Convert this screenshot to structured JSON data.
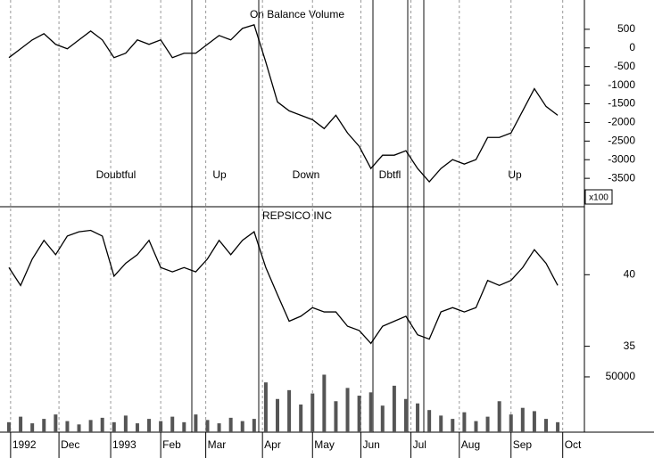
{
  "chart_data": [
    {
      "type": "line",
      "title": "On Balance Volume",
      "unit_note": "x100",
      "annotations": [
        "Doubtful",
        "Up",
        "Down",
        "Dbtfl",
        "Up"
      ],
      "x": [
        0,
        7,
        14,
        21,
        28,
        35,
        42,
        49,
        56,
        63,
        70,
        77,
        84,
        91,
        98,
        105,
        112,
        119,
        126,
        133,
        140,
        147,
        154,
        161,
        168,
        175,
        182,
        189,
        196,
        203,
        210,
        217,
        224,
        231,
        238,
        245,
        252,
        259,
        266,
        273,
        280,
        287,
        294,
        301,
        308,
        315,
        322,
        329
      ],
      "values": [
        -261,
        -23,
        215,
        382,
        96,
        -23,
        215,
        453,
        215,
        -261,
        -142,
        215,
        96,
        215,
        -261,
        -142,
        -142,
        96,
        334,
        215,
        524,
        620,
        -380,
        -1451,
        -1689,
        -1808,
        -1927,
        -2165,
        -1808,
        -2284,
        -2641,
        -3236,
        -2879,
        -2879,
        -2760,
        -3236,
        -3593,
        -3236,
        -2998,
        -3117,
        -2998,
        -2403,
        -2403,
        -2284,
        -1689,
        -1094,
        -1570,
        -1808
      ],
      "color": "#000000",
      "xlim": [
        0,
        345
      ],
      "ylim": [
        -4262,
        1286
      ],
      "yticks": [
        500,
        0,
        -500,
        -1000,
        -1500,
        -2000,
        -2500,
        -3000,
        -3500
      ]
    },
    {
      "type": "line",
      "title": "REPSICO INC",
      "x": [
        0,
        7,
        14,
        21,
        28,
        35,
        42,
        49,
        56,
        63,
        70,
        77,
        84,
        91,
        98,
        105,
        112,
        119,
        126,
        133,
        140,
        147,
        154,
        161,
        168,
        175,
        182,
        189,
        196,
        203,
        210,
        217,
        224,
        231,
        238,
        245,
        252,
        259,
        266,
        273,
        280,
        287,
        294,
        301,
        308,
        315,
        322,
        329
      ],
      "values": [
        40.5,
        39.25,
        41.1,
        42.4,
        41.4,
        42.7,
        43,
        43.1,
        42.7,
        39.9,
        40.8,
        41.4,
        42.4,
        40.5,
        40.2,
        40.5,
        40.2,
        41.1,
        42.4,
        41.4,
        42.4,
        43,
        40.5,
        38.6,
        36.75,
        37.1,
        37.7,
        37.4,
        37.4,
        36.4,
        36.1,
        35.2,
        36.4,
        36.75,
        37.1,
        35.8,
        35.5,
        37.4,
        37.7,
        37.4,
        37.7,
        39.6,
        39.25,
        39.6,
        40.5,
        41.75,
        40.8,
        39.25
      ],
      "color": "#000000",
      "xlim": [
        0,
        345
      ],
      "ylim": [
        29,
        44.75
      ],
      "yticks": [
        35,
        40
      ]
    },
    {
      "type": "bar",
      "x": [
        0,
        7,
        14,
        21,
        28,
        35,
        42,
        49,
        56,
        63,
        70,
        77,
        84,
        91,
        98,
        105,
        112,
        119,
        126,
        133,
        140,
        147,
        154,
        161,
        168,
        175,
        182,
        189,
        196,
        203,
        210,
        217,
        224,
        231,
        238,
        245,
        252,
        259,
        266,
        273,
        280,
        287,
        294,
        301,
        308,
        315,
        322,
        329
      ],
      "values": [
        9000,
        14000,
        8000,
        12000,
        16000,
        10000,
        7000,
        11000,
        13000,
        9000,
        15000,
        8000,
        12000,
        10000,
        14000,
        9000,
        16000,
        11000,
        8000,
        13000,
        10000,
        12000,
        45000,
        30000,
        38000,
        25000,
        35000,
        52000,
        28000,
        40000,
        33000,
        36000,
        24000,
        42000,
        30000,
        26000,
        20000,
        15000,
        12000,
        18000,
        10000,
        14000,
        28000,
        16000,
        22000,
        19000,
        12000,
        9000
      ],
      "color": "#555555",
      "xlim": [
        0,
        345
      ],
      "ylim": [
        0,
        68500
      ],
      "yticks": [
        50000
      ],
      "xticks": [
        {
          "value": 1,
          "label": "1992"
        },
        {
          "value": 30,
          "label": "Dec"
        },
        {
          "value": 61,
          "label": "1993"
        },
        {
          "value": 91,
          "label": "Feb"
        },
        {
          "value": 118,
          "label": "Mar"
        },
        {
          "value": 152,
          "label": "Apr"
        },
        {
          "value": 182,
          "label": "May"
        },
        {
          "value": 211,
          "label": "Jun"
        },
        {
          "value": 241,
          "label": "Jul"
        },
        {
          "value": 270,
          "label": "Aug"
        },
        {
          "value": 301,
          "label": "Sep"
        },
        {
          "value": 332,
          "label": "Oct"
        }
      ]
    }
  ]
}
